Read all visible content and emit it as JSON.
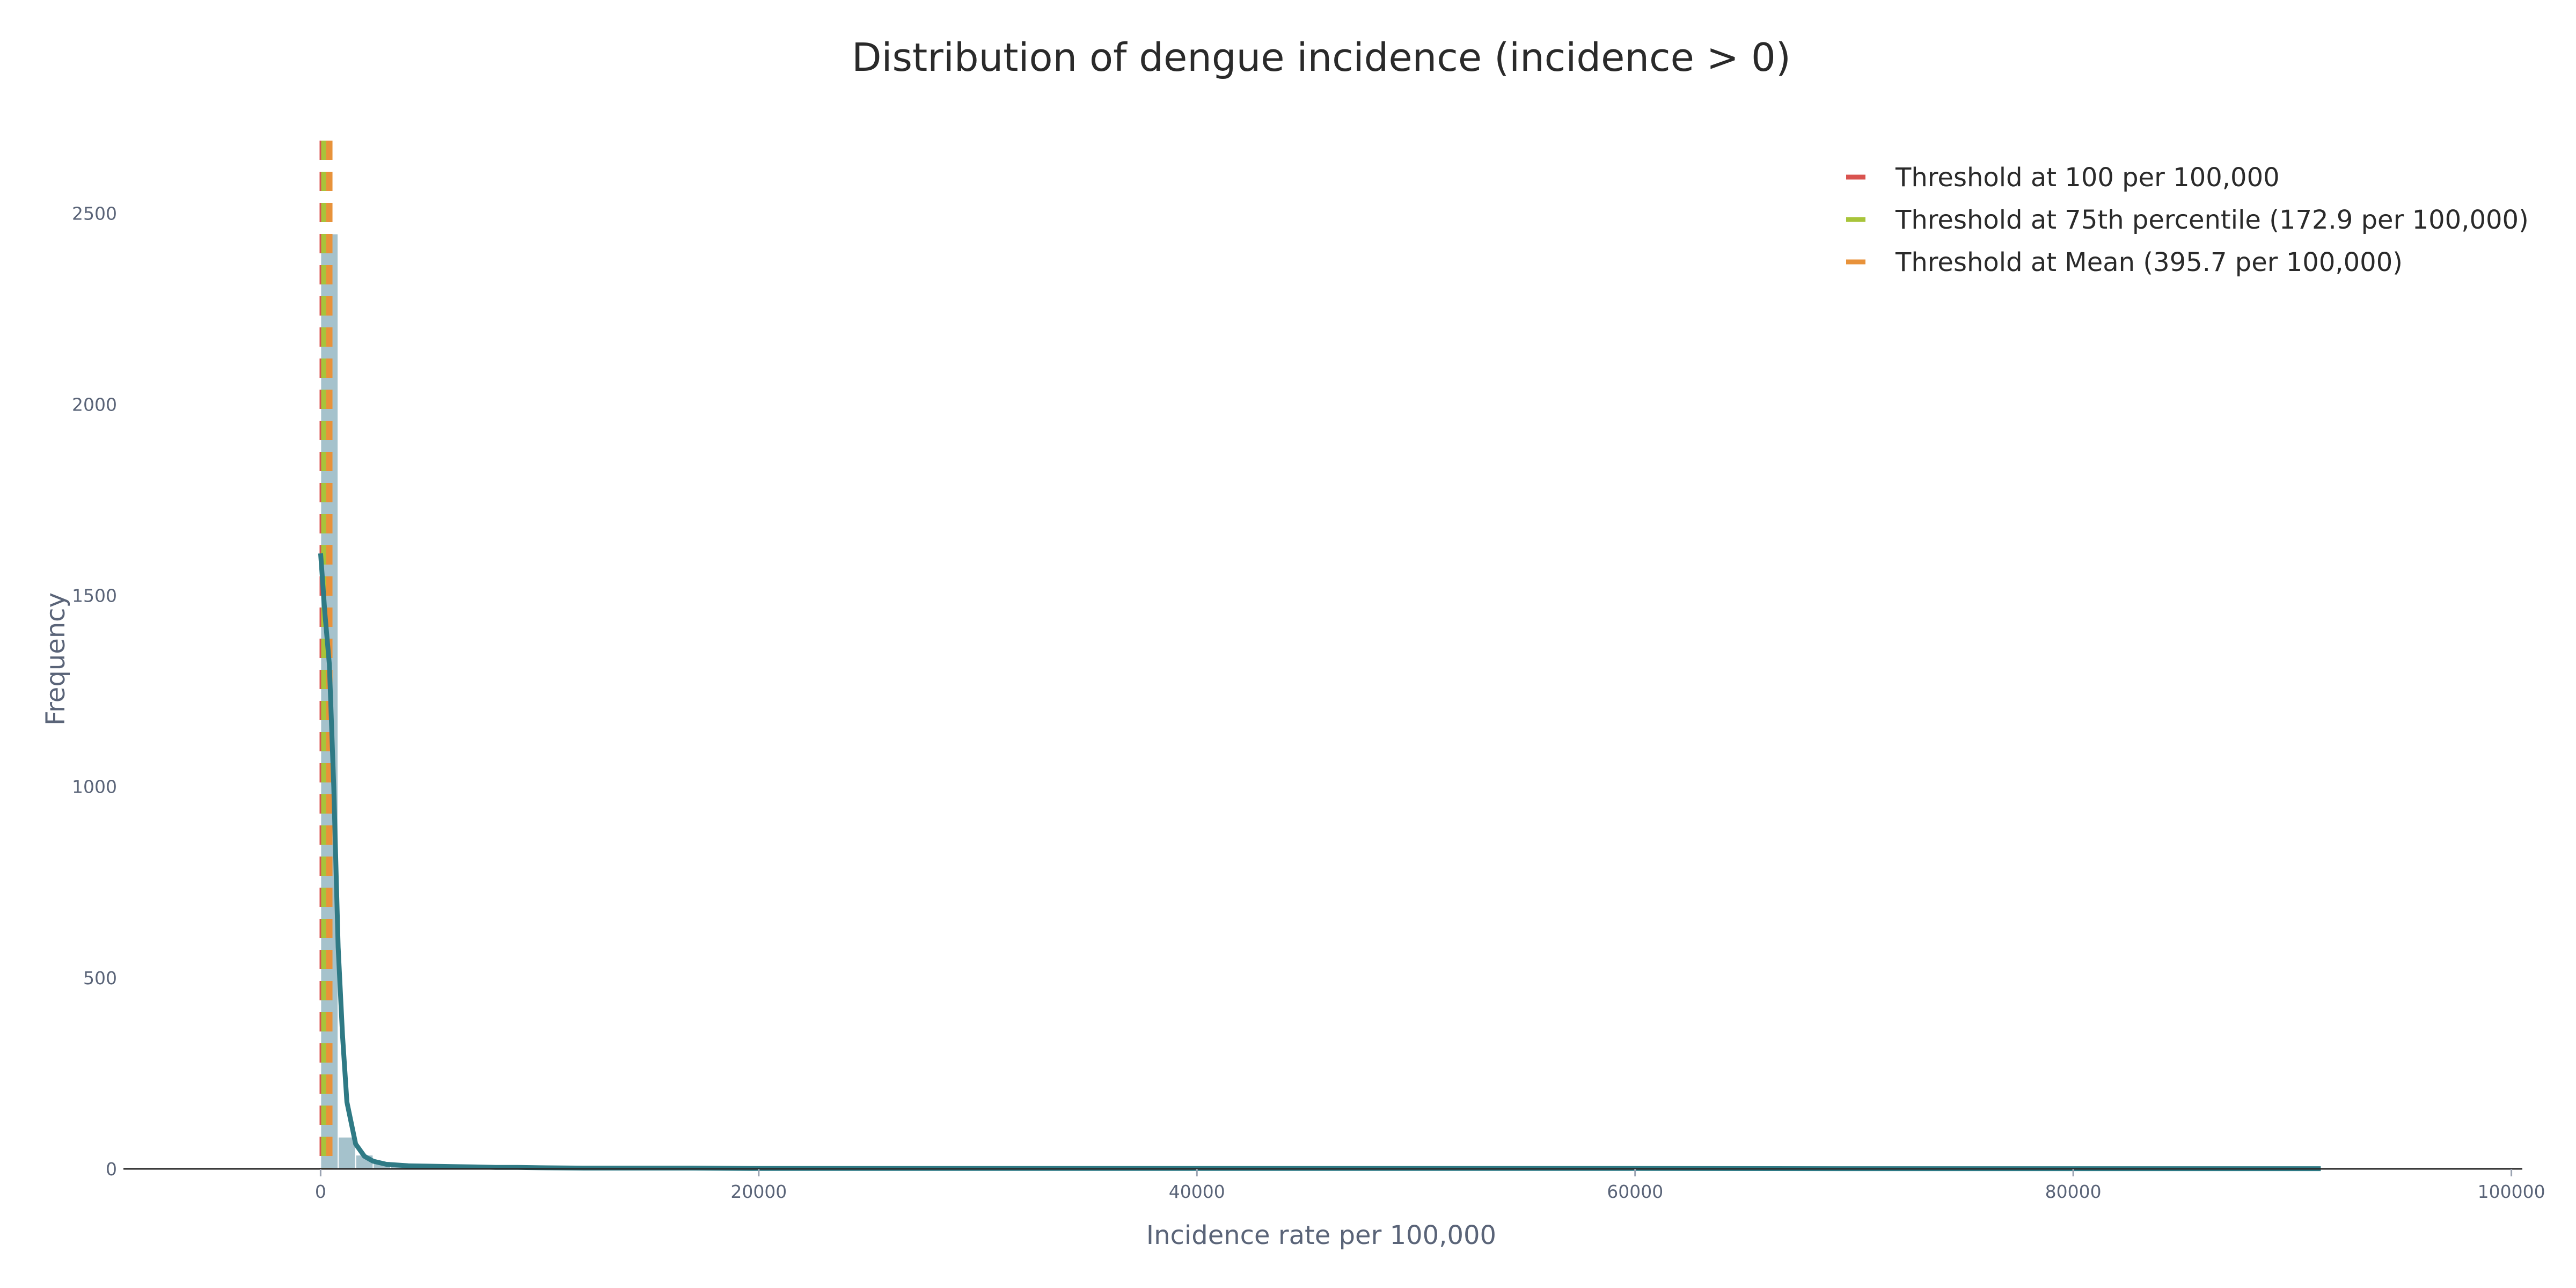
{
  "chart_data": {
    "type": "bar",
    "title": "Distribution of dengue incidence (incidence > 0)",
    "xlabel": "Incidence rate per 100,000",
    "ylabel": "Frequency",
    "xlim": [
      -9000,
      100500
    ],
    "ylim": [
      0,
      2690
    ],
    "x_ticks": [
      0,
      20000,
      40000,
      60000,
      80000,
      100000
    ],
    "x_tick_labels": [
      "0",
      "20000",
      "40000",
      "60000",
      "80000",
      "100000"
    ],
    "y_ticks": [
      0,
      500,
      1000,
      1500,
      2000,
      2500
    ],
    "y_tick_labels": [
      "0",
      "500",
      "1000",
      "1500",
      "2000",
      "2500"
    ],
    "grid": false,
    "legend_position": "top-right",
    "histogram": {
      "bin_width": 800,
      "bins": [
        {
          "start": 0,
          "count": 2445
        },
        {
          "start": 800,
          "count": 82
        },
        {
          "start": 1600,
          "count": 35
        },
        {
          "start": 2400,
          "count": 18
        },
        {
          "start": 3200,
          "count": 10
        },
        {
          "start": 4000,
          "count": 7
        },
        {
          "start": 4800,
          "count": 5
        },
        {
          "start": 5600,
          "count": 4
        },
        {
          "start": 6400,
          "count": 3
        },
        {
          "start": 7200,
          "count": 3
        },
        {
          "start": 8000,
          "count": 2
        },
        {
          "start": 8800,
          "count": 2
        },
        {
          "start": 9600,
          "count": 1
        },
        {
          "start": 12000,
          "count": 1
        },
        {
          "start": 16800,
          "count": 1
        },
        {
          "start": 31200,
          "count": 1
        },
        {
          "start": 46400,
          "count": 1
        },
        {
          "start": 90400,
          "count": 1
        }
      ]
    },
    "density_curve": {
      "x": [
        0,
        200,
        400,
        600,
        800,
        1000,
        1200,
        1600,
        2000,
        2400,
        3000,
        4000,
        5000,
        6000,
        7000,
        8000,
        9000,
        10000,
        12000,
        14000,
        17000,
        20000,
        30000,
        40000,
        50000,
        60000,
        70000,
        80000,
        91300
      ],
      "y": [
        1610,
        1450,
        1320,
        1000,
        580,
        350,
        175,
        65,
        33,
        20,
        12,
        8,
        7,
        6,
        5,
        4,
        4,
        3,
        2,
        2,
        2,
        1,
        1,
        1,
        1,
        1,
        0.5,
        0.5,
        0.5
      ]
    },
    "thresholds": [
      {
        "name": "Threshold at 100 per 100,000",
        "value": 100,
        "color": "#d9534f"
      },
      {
        "name": "Threshold at 75th percentile (172.9 per 100,000)",
        "value": 172.9,
        "color": "#a8c43a"
      },
      {
        "name": "Threshold at Mean (395.7 per 100,000)",
        "value": 395.7,
        "color": "#e8923a"
      }
    ],
    "colors": {
      "bars": "#8fb3bf",
      "density": "#2f7a85",
      "axis": "#2a2a2a"
    }
  }
}
